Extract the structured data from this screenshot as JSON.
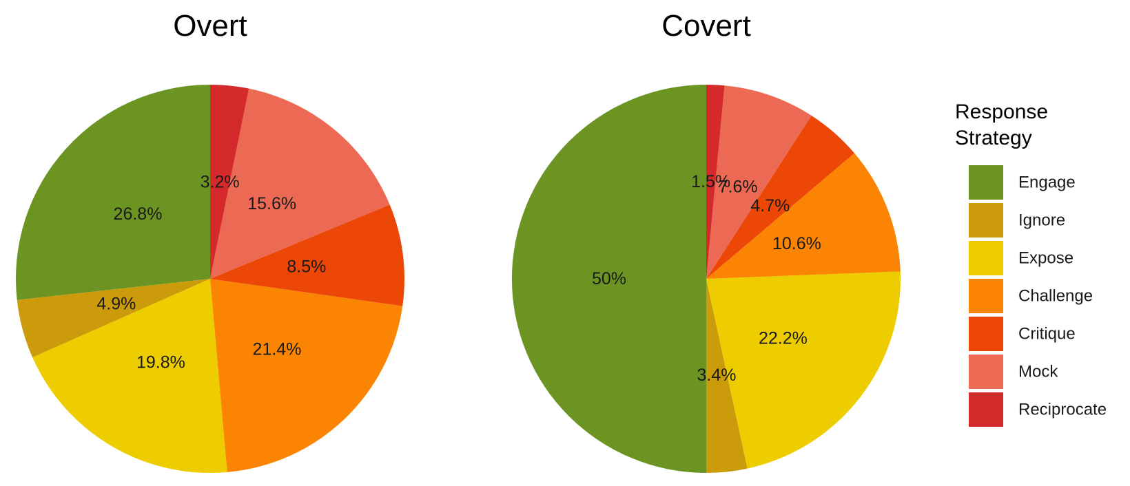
{
  "legend": {
    "title_line1": "Response",
    "title_line2": "Strategy",
    "entries": [
      {
        "label": "Engage",
        "color": "#6b9423"
      },
      {
        "label": "Ignore",
        "color": "#cc9b0c"
      },
      {
        "label": "Expose",
        "color": "#eecd00"
      },
      {
        "label": "Challenge",
        "color": "#fb8502"
      },
      {
        "label": "Critique",
        "color": "#ed4707"
      },
      {
        "label": "Mock",
        "color": "#ec6a54"
      },
      {
        "label": "Reciprocate",
        "color": "#d42a2c"
      }
    ]
  },
  "chart_data": [
    {
      "type": "pie",
      "title": "Overt",
      "direction": "counterclockwise from top",
      "slices": [
        {
          "category": "Engage",
          "value": 26.8,
          "label": "26.8%"
        },
        {
          "category": "Ignore",
          "value": 4.9,
          "label": "4.9%"
        },
        {
          "category": "Expose",
          "value": 19.8,
          "label": "19.8%"
        },
        {
          "category": "Challenge",
          "value": 21.4,
          "label": "21.4%"
        },
        {
          "category": "Critique",
          "value": 8.5,
          "label": "8.5%"
        },
        {
          "category": "Mock",
          "value": 15.6,
          "label": "15.6%"
        },
        {
          "category": "Reciprocate",
          "value": 3.2,
          "label": "3.2%"
        }
      ]
    },
    {
      "type": "pie",
      "title": "Covert",
      "direction": "counterclockwise from top",
      "slices": [
        {
          "category": "Engage",
          "value": 50,
          "label": "50%"
        },
        {
          "category": "Ignore",
          "value": 3.4,
          "label": "3.4%"
        },
        {
          "category": "Expose",
          "value": 22.2,
          "label": "22.2%"
        },
        {
          "category": "Challenge",
          "value": 10.6,
          "label": "10.6%"
        },
        {
          "category": "Critique",
          "value": 4.7,
          "label": "4.7%"
        },
        {
          "category": "Mock",
          "value": 7.6,
          "label": "7.6%"
        },
        {
          "category": "Reciprocate",
          "value": 1.5,
          "label": "1.5%"
        }
      ]
    }
  ]
}
